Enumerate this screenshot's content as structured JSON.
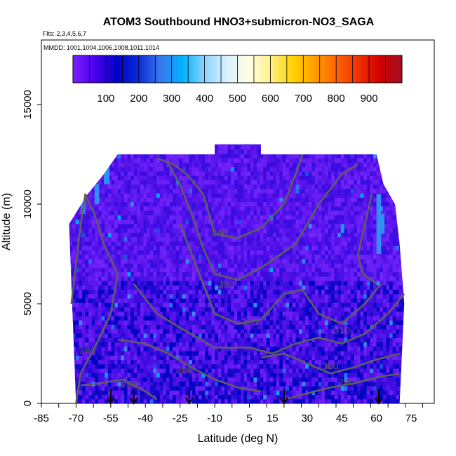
{
  "title": "ATOM3 Southbound HNO3+submicron-NO3_SAGA",
  "flights_line": "Flts: 2,3,4,5,6,7",
  "mmdd_line": "MMDD: 1001,1004,1006,1008,1011,1014",
  "xlabel": "Latitude (deg N)",
  "ylabel": "Altitude (m)",
  "chart_data": {
    "type": "heatmap",
    "title": "ATOM3 Southbound HNO3+submicron-NO3_SAGA",
    "xlabel": "Latitude (deg N)",
    "ylabel": "Altitude (m)",
    "xlim": [
      -85,
      85
    ],
    "ylim": [
      0,
      17500
    ],
    "x_ticks": [
      -85,
      -70,
      -55,
      -40,
      -25,
      -10,
      5,
      15,
      30,
      45,
      60,
      75
    ],
    "y_ticks": [
      0,
      5000,
      10000,
      15000
    ],
    "colorbar": {
      "range": [
        0,
        1000
      ],
      "tick_values": [
        100,
        200,
        300,
        400,
        500,
        600,
        700,
        800,
        900
      ],
      "colors": [
        "#7a1fff",
        "#4b00ea",
        "#0000c8",
        "#0a2cd8",
        "#3a78ee",
        "#00b2ff",
        "#8ed4ff",
        "#d8f0ff",
        "#ffffe6",
        "#fff08a",
        "#ffd400",
        "#ffa000",
        "#ff6400",
        "#f03000",
        "#d00000",
        "#a01020"
      ]
    },
    "coverage_outline": [
      [
        -70,
        0
      ],
      [
        -72,
        6000
      ],
      [
        -73,
        9000
      ],
      [
        -65,
        10500
      ],
      [
        -58,
        11500
      ],
      [
        -52,
        12500
      ],
      [
        -10,
        12500
      ],
      [
        -10,
        13000
      ],
      [
        10,
        13000
      ],
      [
        10,
        12500
      ],
      [
        60,
        12500
      ],
      [
        63,
        11000
      ],
      [
        68,
        10000
      ],
      [
        70,
        8000
      ],
      [
        72,
        5000
      ],
      [
        70,
        0
      ]
    ],
    "contours": [
      {
        "label": "280",
        "label_at": [
          -65,
          2500
        ],
        "points": [
          [
            -70,
            0
          ],
          [
            -68,
            1500
          ],
          [
            -62,
            2800
          ],
          [
            -55,
            4500
          ],
          [
            -52,
            6500
          ],
          [
            -58,
            8000
          ],
          [
            -62,
            9500
          ],
          [
            -66,
            10500
          ],
          [
            -68,
            9000
          ],
          [
            -70,
            7000
          ],
          [
            -72,
            5000
          ]
        ]
      },
      {
        "label": "290",
        "label_at": [
          -47,
          800
        ],
        "points": [
          [
            -68,
            900
          ],
          [
            -60,
            1000
          ],
          [
            -50,
            1200
          ],
          [
            -40,
            600
          ],
          [
            -35,
            200
          ]
        ]
      },
      {
        "label": "290",
        "label_at": [
          47,
          900
        ],
        "points": [
          [
            20,
            200
          ],
          [
            30,
            500
          ],
          [
            40,
            800
          ],
          [
            50,
            1000
          ],
          [
            60,
            1300
          ],
          [
            70,
            1500
          ]
        ]
      },
      {
        "label": "300",
        "label_at": [
          -23,
          1500
        ],
        "points": [
          [
            -52,
            3200
          ],
          [
            -40,
            3000
          ],
          [
            -30,
            2500
          ],
          [
            -20,
            1800
          ],
          [
            -10,
            1200
          ],
          [
            0,
            800
          ],
          [
            10,
            600
          ]
        ]
      },
      {
        "label": "300",
        "label_at": [
          40,
          1700
        ],
        "points": [
          [
            10,
            2300
          ],
          [
            20,
            2500
          ],
          [
            30,
            2000
          ],
          [
            40,
            1500
          ],
          [
            50,
            1800
          ],
          [
            60,
            2200
          ],
          [
            70,
            2500
          ]
        ]
      },
      {
        "label": "310",
        "label_at": [
          45,
          3500
        ],
        "points": [
          [
            -45,
            6000
          ],
          [
            -35,
            4500
          ],
          [
            -25,
            3800
          ],
          [
            -10,
            2800
          ],
          [
            5,
            2800
          ],
          [
            15,
            2500
          ],
          [
            25,
            3000
          ],
          [
            35,
            3300
          ],
          [
            45,
            3000
          ],
          [
            55,
            3500
          ],
          [
            65,
            4500
          ],
          [
            72,
            5500
          ]
        ]
      },
      {
        "label": "320",
        "label_at": [
          5,
          3900
        ],
        "points": [
          [
            -25,
            9000
          ],
          [
            -20,
            7500
          ],
          [
            -15,
            6000
          ],
          [
            -10,
            4500
          ],
          [
            0,
            4000
          ],
          [
            10,
            4200
          ],
          [
            20,
            5500
          ],
          [
            28,
            5700
          ],
          [
            35,
            4500
          ],
          [
            45,
            4000
          ],
          [
            55,
            5000
          ],
          [
            62,
            6000
          ]
        ]
      },
      {
        "label": "330",
        "label_at": [
          -5,
          5800
        ],
        "points": [
          [
            -30,
            12000
          ],
          [
            -25,
            11000
          ],
          [
            -20,
            9500
          ],
          [
            -15,
            7800
          ],
          [
            -10,
            6500
          ],
          [
            0,
            6200
          ],
          [
            10,
            6800
          ],
          [
            25,
            8000
          ],
          [
            35,
            10000
          ],
          [
            45,
            11500
          ],
          [
            52,
            12000
          ]
        ]
      },
      {
        "label": "340",
        "label_at": [
          -8,
          8400
        ],
        "points": [
          [
            -35,
            12300
          ],
          [
            -28,
            12000
          ],
          [
            -22,
            11500
          ],
          [
            -15,
            10500
          ],
          [
            -10,
            8500
          ],
          [
            0,
            8300
          ],
          [
            10,
            8800
          ],
          [
            20,
            10000
          ],
          [
            25,
            11500
          ],
          [
            28,
            12500
          ]
        ]
      },
      {
        "label": "",
        "label_at": [
          0,
          0
        ],
        "points": [
          [
            58,
            10500
          ],
          [
            55,
            9000
          ],
          [
            52,
            7500
          ],
          [
            54,
            6500
          ],
          [
            60,
            6000
          ]
        ]
      }
    ],
    "arrow_latitudes": [
      -55,
      -45,
      -21,
      20,
      61
    ]
  }
}
